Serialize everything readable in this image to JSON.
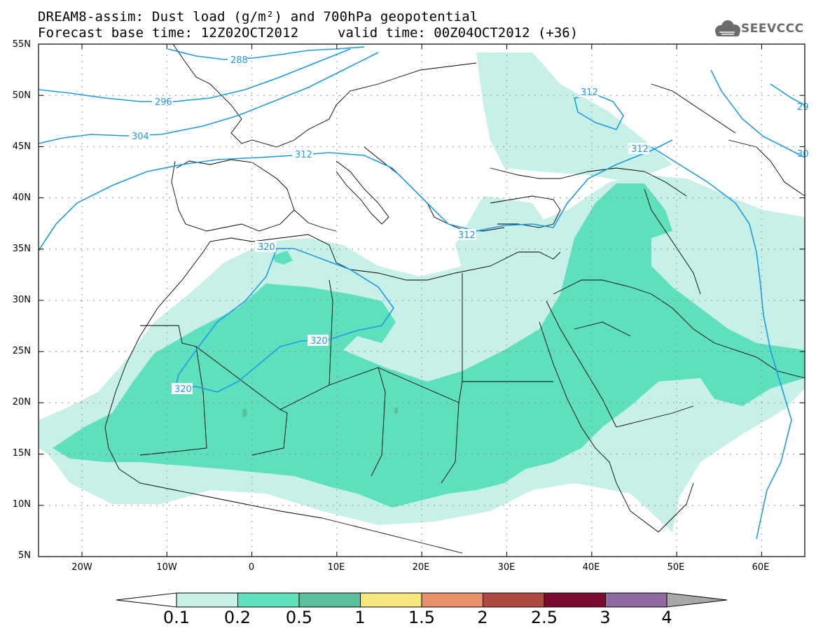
{
  "title": {
    "line1": "DREAM8-assim: Dust load (g/m²) and 700hPa geopotential",
    "line2": "Forecast base time: 12Z02OCT2012",
    "valid": "valid time: 00Z04OCT2012 (+36)"
  },
  "logo": {
    "text": "SEEVCCC",
    "icon": "cloud-icon"
  },
  "map": {
    "lat_labels": [
      "55N",
      "50N",
      "45N",
      "40N",
      "35N",
      "30N",
      "25N",
      "20N",
      "15N",
      "10N",
      "5N"
    ],
    "lon_labels": [
      "20W",
      "10W",
      "0",
      "10E",
      "20E",
      "30E",
      "40E",
      "50E",
      "60E"
    ],
    "contour_labels": [
      "288",
      "296",
      "304",
      "312",
      "312",
      "312",
      "312",
      "320",
      "320",
      "320",
      "29",
      "30"
    ],
    "colors": {
      "land_border": "#000000",
      "contour": "#1e9be0"
    }
  },
  "colorbar": {
    "labels": [
      "0.1",
      "0.2",
      "0.5",
      "1",
      "1.5",
      "2",
      "2.5",
      "3",
      "4"
    ],
    "colors": [
      "#c6f0e8",
      "#5ee0be",
      "#5cbf9c",
      "#f5e67e",
      "#e8906c",
      "#b04a40",
      "#7a0a2e",
      "#8e6aa0",
      "#a8a8a8"
    ],
    "low_color": "#ffffff"
  }
}
